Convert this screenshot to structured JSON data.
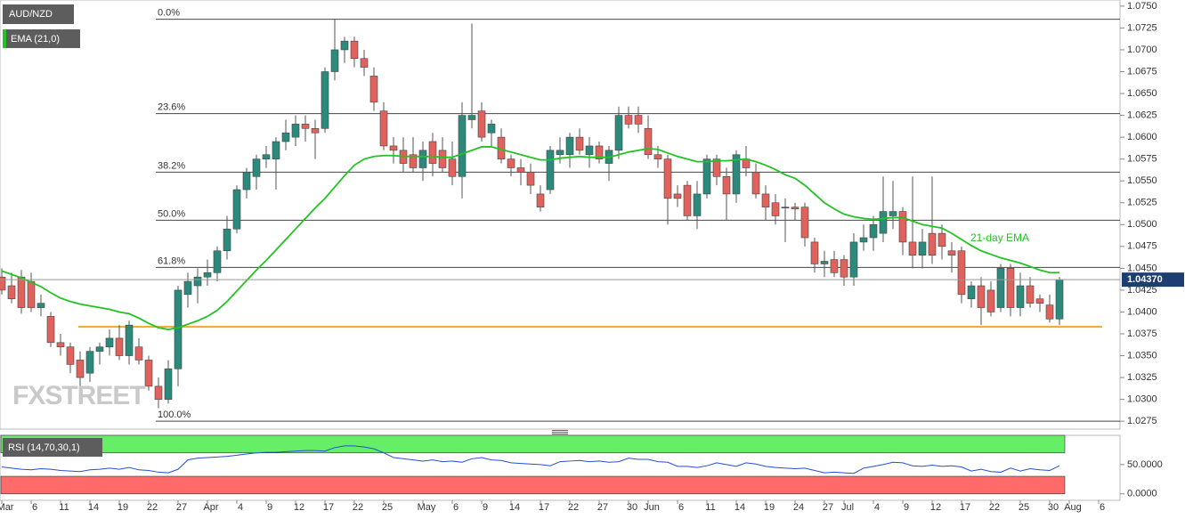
{
  "chart_data": [
    {
      "type": "candlestick",
      "title": "AUD/NZD",
      "categories": [
        "Mar",
        null,
        null,
        "6",
        null,
        null,
        "11",
        null,
        null,
        "14",
        null,
        null,
        "19",
        null,
        null,
        "22",
        null,
        null,
        "27",
        null,
        null,
        "Apr",
        null,
        null,
        "4",
        null,
        null,
        "9",
        null,
        null,
        "12",
        null,
        null,
        "17",
        null,
        null,
        "22",
        null,
        null,
        "25",
        null,
        null,
        null,
        "May",
        null,
        null,
        "6",
        null,
        null,
        "9",
        null,
        null,
        "14",
        null,
        null,
        "17",
        null,
        null,
        "22",
        null,
        null,
        "27",
        null,
        null,
        "30",
        null,
        "Jun",
        null,
        null,
        "6",
        null,
        null,
        "11",
        null,
        null,
        "14",
        null,
        null,
        "19",
        null,
        null,
        "24",
        null,
        null,
        "27",
        null,
        "Jul",
        null,
        null,
        "4",
        null,
        null,
        "9",
        null,
        null,
        "12",
        null,
        null,
        "17",
        null,
        null,
        "22",
        null,
        null,
        "25",
        null,
        null,
        "30",
        null,
        "Aug",
        null,
        null,
        "6"
      ],
      "ohlc": [
        [
          1.044,
          1.045,
          1.042,
          1.0425
        ],
        [
          1.043,
          1.0445,
          1.041,
          1.0415
        ],
        [
          1.044,
          1.0448,
          1.0398,
          1.0405
        ],
        [
          1.0435,
          1.0445,
          1.04,
          1.0405
        ],
        [
          1.0405,
          1.042,
          1.0395,
          1.041
        ],
        [
          1.0395,
          1.04,
          1.036,
          1.0365
        ],
        [
          1.0365,
          1.0375,
          1.035,
          1.036
        ],
        [
          1.036,
          1.0365,
          1.033,
          1.034
        ],
        [
          1.0345,
          1.0355,
          1.0315,
          1.0325
        ],
        [
          1.033,
          1.036,
          1.032,
          1.0355
        ],
        [
          1.0355,
          1.0365,
          1.034,
          1.036
        ],
        [
          1.036,
          1.038,
          1.035,
          1.037
        ],
        [
          1.037,
          1.0385,
          1.0345,
          1.035
        ],
        [
          1.035,
          1.039,
          1.034,
          1.0385
        ],
        [
          1.036,
          1.037,
          1.034,
          1.0345
        ],
        [
          1.0345,
          1.035,
          1.031,
          1.0315
        ],
        [
          1.0315,
          1.0325,
          1.029,
          1.03
        ],
        [
          1.03,
          1.0345,
          1.0295,
          1.0335
        ],
        [
          1.0335,
          1.043,
          1.0315,
          1.0425
        ],
        [
          1.042,
          1.0445,
          1.0405,
          1.0435
        ],
        [
          1.043,
          1.045,
          1.041,
          1.044
        ],
        [
          1.044,
          1.046,
          1.043,
          1.0445
        ],
        [
          1.0445,
          1.0475,
          1.0435,
          1.047
        ],
        [
          1.047,
          1.051,
          1.046,
          1.0495
        ],
        [
          1.0495,
          1.0545,
          1.049,
          1.054
        ],
        [
          1.054,
          1.0565,
          1.053,
          1.056
        ],
        [
          1.0555,
          1.058,
          1.054,
          1.0575
        ],
        [
          1.0575,
          1.059,
          1.0565,
          1.058
        ],
        [
          1.0575,
          1.06,
          1.054,
          1.0595
        ],
        [
          1.0595,
          1.062,
          1.0585,
          1.0605
        ],
        [
          1.06,
          1.0625,
          1.059,
          1.0615
        ],
        [
          1.0615,
          1.0625,
          1.0595,
          1.061
        ],
        [
          1.061,
          1.062,
          1.0575,
          1.0605
        ],
        [
          1.061,
          1.068,
          1.0605,
          1.0675
        ],
        [
          1.0675,
          1.0735,
          1.0665,
          1.07
        ],
        [
          1.07,
          1.0715,
          1.0685,
          1.071
        ],
        [
          1.071,
          1.0715,
          1.068,
          1.069
        ],
        [
          1.069,
          1.07,
          1.067,
          1.068
        ],
        [
          1.067,
          1.068,
          1.063,
          1.064
        ],
        [
          1.063,
          1.064,
          1.0585,
          1.059
        ],
        [
          1.059,
          1.06,
          1.057,
          1.0585
        ],
        [
          1.0585,
          1.06,
          1.056,
          1.057
        ],
        [
          1.058,
          1.06,
          1.056,
          1.0565
        ],
        [
          1.0565,
          1.0595,
          1.055,
          1.0585
        ],
        [
          1.0595,
          1.0605,
          1.0555,
          1.057
        ],
        [
          1.0585,
          1.06,
          1.056,
          1.0565
        ],
        [
          1.0575,
          1.0595,
          1.0545,
          1.0555
        ],
        [
          1.0555,
          1.064,
          1.053,
          1.0625
        ],
        [
          1.062,
          1.073,
          1.061,
          1.0625
        ],
        [
          1.063,
          1.064,
          1.0595,
          1.06
        ],
        [
          1.0605,
          1.062,
          1.059,
          1.0615
        ],
        [
          1.06,
          1.061,
          1.057,
          1.0575
        ],
        [
          1.0575,
          1.058,
          1.0555,
          1.0565
        ],
        [
          1.0565,
          1.0575,
          1.0545,
          1.056
        ],
        [
          1.056,
          1.057,
          1.0535,
          1.0545
        ],
        [
          1.0535,
          1.0545,
          1.0515,
          1.052
        ],
        [
          1.054,
          1.059,
          1.0535,
          1.0585
        ],
        [
          1.058,
          1.06,
          1.057,
          1.0585
        ],
        [
          1.058,
          1.0605,
          1.0565,
          1.06
        ],
        [
          1.06,
          1.061,
          1.058,
          1.0585
        ],
        [
          1.058,
          1.06,
          1.0565,
          1.059
        ],
        [
          1.059,
          1.0595,
          1.057,
          1.0575
        ],
        [
          1.057,
          1.059,
          1.055,
          1.0585
        ],
        [
          1.0585,
          1.0635,
          1.0575,
          1.0625
        ],
        [
          1.0625,
          1.0635,
          1.061,
          1.0615
        ],
        [
          1.0625,
          1.0635,
          1.0605,
          1.0615
        ],
        [
          1.061,
          1.0625,
          1.0575,
          1.058
        ],
        [
          1.058,
          1.059,
          1.0565,
          1.0575
        ],
        [
          1.0575,
          1.058,
          1.05,
          1.053
        ],
        [
          1.0535,
          1.0545,
          1.052,
          1.053
        ],
        [
          1.0545,
          1.055,
          1.0505,
          1.051
        ],
        [
          1.051,
          1.055,
          1.0495,
          1.0535
        ],
        [
          1.0535,
          1.058,
          1.053,
          1.0575
        ],
        [
          1.0575,
          1.058,
          1.0545,
          1.0555
        ],
        [
          1.0555,
          1.0565,
          1.0505,
          1.0535
        ],
        [
          1.0535,
          1.0585,
          1.0525,
          1.058
        ],
        [
          1.0575,
          1.059,
          1.0555,
          1.0565
        ],
        [
          1.056,
          1.057,
          1.053,
          1.0535
        ],
        [
          1.0535,
          1.0545,
          1.0505,
          1.052
        ],
        [
          1.0525,
          1.0535,
          1.05,
          1.051
        ],
        [
          1.052,
          1.053,
          1.048,
          1.052
        ],
        [
          1.052,
          1.0525,
          1.0505,
          1.0518
        ],
        [
          1.052,
          1.0525,
          1.0475,
          1.0485
        ],
        [
          1.048,
          1.0485,
          1.0445,
          1.0455
        ],
        [
          1.0455,
          1.047,
          1.044,
          1.0458
        ],
        [
          1.046,
          1.047,
          1.044,
          1.0445
        ],
        [
          1.046,
          1.0465,
          1.043,
          1.044
        ],
        [
          1.044,
          1.049,
          1.043,
          1.048
        ],
        [
          1.048,
          1.05,
          1.047,
          1.0485
        ],
        [
          1.0485,
          1.051,
          1.047,
          1.05
        ],
        [
          1.049,
          1.0555,
          1.048,
          1.0515
        ],
        [
          1.051,
          1.055,
          1.0495,
          1.0515
        ],
        [
          1.0515,
          1.052,
          1.0465,
          1.048
        ],
        [
          1.048,
          1.0555,
          1.045,
          1.0465
        ],
        [
          1.0465,
          1.0495,
          1.045,
          1.048
        ],
        [
          1.049,
          1.0555,
          1.0455,
          1.0465
        ],
        [
          1.049,
          1.05,
          1.046,
          1.0475
        ],
        [
          1.047,
          1.048,
          1.0445,
          1.0465
        ],
        [
          1.047,
          1.0475,
          1.041,
          1.042
        ],
        [
          1.0415,
          1.0435,
          1.0405,
          1.043
        ],
        [
          1.043,
          1.044,
          1.0385,
          1.0405
        ],
        [
          1.0425,
          1.0435,
          1.0395,
          1.04
        ],
        [
          1.0405,
          1.0455,
          1.04,
          1.045
        ],
        [
          1.045,
          1.0455,
          1.0395,
          1.0405
        ],
        [
          1.0405,
          1.0445,
          1.0395,
          1.043
        ],
        [
          1.043,
          1.044,
          1.0405,
          1.041
        ],
        [
          1.0415,
          1.042,
          1.04,
          1.041
        ],
        [
          1.0408,
          1.042,
          1.0388,
          1.0392
        ],
        [
          1.0392,
          1.044,
          1.0385,
          1.0437
        ],
        null,
        null,
        null,
        null
      ],
      "up_color": "#2b8a7c",
      "down_color": "#e0625c",
      "overlay": {
        "name": "EMA (21,0)",
        "color": "#22c322",
        "label": "21-day EMA",
        "values": [
          1.0447,
          1.0443,
          1.0439,
          1.0434,
          1.0429,
          1.0422,
          1.0416,
          1.0412,
          1.0409,
          1.0407,
          1.0405,
          1.0403,
          1.04,
          1.0398,
          1.0393,
          1.0387,
          1.0382,
          1.038,
          1.0382,
          1.0386,
          1.039,
          1.0395,
          1.0402,
          1.0412,
          1.0424,
          1.0436,
          1.0448,
          1.0459,
          1.0471,
          1.0483,
          1.0495,
          1.0507,
          1.0519,
          1.053,
          1.0543,
          1.0556,
          1.0568,
          1.0575,
          1.0578,
          1.0579,
          1.0579,
          1.0578,
          1.0578,
          1.0578,
          1.0578,
          1.0577,
          1.0577,
          1.0581,
          1.0585,
          1.0589,
          1.0589,
          1.0586,
          1.0583,
          1.058,
          1.0577,
          1.0574,
          1.0574,
          1.0576,
          1.0577,
          1.0578,
          1.0577,
          1.0577,
          1.0577,
          1.058,
          1.0583,
          1.0585,
          1.0587,
          1.0586,
          1.0582,
          1.0578,
          1.0575,
          1.0572,
          1.0572,
          1.0573,
          1.0573,
          1.0574,
          1.0575,
          1.0572,
          1.0568,
          1.0563,
          1.0557,
          1.0553,
          1.0545,
          1.0535,
          1.0525,
          1.0518,
          1.0512,
          1.0509,
          1.0507,
          1.0506,
          1.0507,
          1.0508,
          1.0508,
          1.0504,
          1.05,
          1.0498,
          1.0496,
          1.049,
          1.0483,
          1.0476,
          1.047,
          1.0466,
          1.0462,
          1.0459,
          1.0456,
          1.0452,
          1.0448,
          1.0445,
          1.0445,
          null,
          null,
          null,
          null
        ]
      },
      "last_price_label": "1.04370",
      "fib_levels": [
        {
          "label": "0.0%",
          "price": 1.0735
        },
        {
          "label": "23.6%",
          "price": 1.0627
        },
        {
          "label": "38.2%",
          "price": 1.056
        },
        {
          "label": "50.0%",
          "price": 1.0505
        },
        {
          "label": "61.8%",
          "price": 1.0451
        },
        {
          "label": "100.0%",
          "price": 1.0275
        }
      ],
      "support": {
        "price": 1.0383,
        "color": "#f5a623"
      },
      "watermark": "FXSTREET",
      "ylim": [
        1.0266,
        1.0757
      ],
      "yticks": [
        1.0275,
        {
          "value": 1.03,
          "label": "1.0300"
        },
        1.0325,
        {
          "value": 1.035,
          "label": "1.0350"
        },
        1.0375,
        {
          "value": 1.04,
          "label": "1.0400"
        },
        1.0425,
        {
          "value": 1.045,
          "label": "1.0450"
        },
        1.0475,
        {
          "value": 1.05,
          "label": "1.0500"
        },
        1.0525,
        {
          "value": 1.055,
          "label": "1.0550"
        },
        1.0575,
        {
          "value": 1.06,
          "label": "1.0600"
        },
        1.0625,
        {
          "value": 1.065,
          "label": "1.0650"
        },
        1.0675,
        {
          "value": 1.07,
          "label": "1.0700"
        },
        1.0725,
        {
          "value": 1.075,
          "label": "1.0750"
        }
      ]
    },
    {
      "type": "line",
      "title": "RSI (14,70,30,1)",
      "color": "#2450d0",
      "values": [
        46,
        44,
        42,
        41,
        43,
        42,
        40,
        39,
        38,
        41,
        42,
        44,
        42,
        45,
        41,
        40,
        37,
        36,
        42,
        58,
        61,
        62,
        63,
        64,
        66,
        68,
        70,
        71,
        71,
        72,
        73,
        74,
        74,
        73,
        79,
        82,
        82,
        80,
        77,
        70,
        62,
        60,
        58,
        56,
        58,
        55,
        56,
        54,
        60,
        62,
        58,
        57,
        53,
        52,
        51,
        50,
        48,
        55,
        56,
        57,
        55,
        56,
        54,
        55,
        61,
        59,
        59,
        55,
        54,
        47,
        47,
        45,
        48,
        53,
        50,
        47,
        53,
        51,
        47,
        45,
        44,
        43,
        44,
        40,
        36,
        37,
        36,
        35,
        44,
        47,
        50,
        54,
        53,
        48,
        47,
        49,
        47,
        48,
        46,
        39,
        42,
        38,
        37,
        44,
        39,
        43,
        41,
        40,
        48,
        null,
        null,
        null,
        null
      ],
      "bands": [
        {
          "from": 70,
          "to": 100,
          "color": "#66ee66"
        },
        {
          "from": 0,
          "to": 30,
          "color": "#ff6b6b"
        }
      ],
      "ylim": [
        -11,
        100
      ],
      "yticks": [
        {
          "value": 0,
          "label": "0.0000"
        },
        {
          "value": 50,
          "label": "50.0000"
        }
      ]
    }
  ]
}
